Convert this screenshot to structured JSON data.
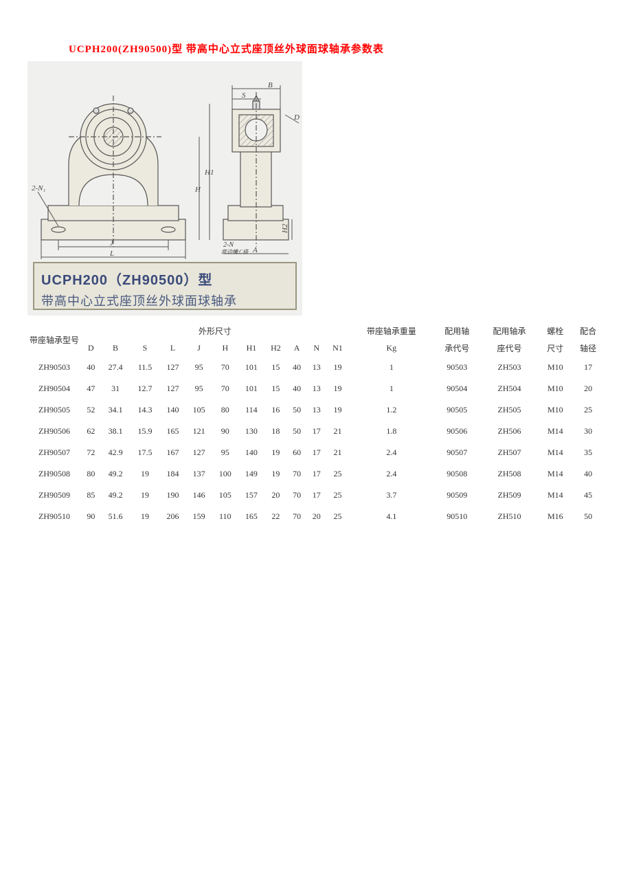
{
  "title": "UCPH200(ZH90500)型 带高中心立式座顶丝外球面球轴承参数表",
  "diagram": {
    "background": "#f0f0ee",
    "caption_line1": "UCPH200（ZH90500）型",
    "caption_line2": "带高中心立式座顶丝外球面球轴承",
    "caption_color1": "#3a4a7a",
    "caption_color2": "#4a5a80",
    "labels": {
      "B": "B",
      "S": "S",
      "D": "D",
      "H1": "H1",
      "H": "H",
      "J": "J",
      "L": "L",
      "A": "A",
      "H2": "H2",
      "N2": "2-N₁",
      "N": "2-N",
      "note": "底边槽.C级"
    }
  },
  "table": {
    "header_group": {
      "model": "带座轴承型号",
      "dims": "外形尺寸",
      "weight": "带座轴承重量",
      "bearing_code": "配用轴",
      "bearing_code2": "承代号",
      "seat_code": "配用轴承",
      "seat_code2": "座代号",
      "bolt": "螺栓",
      "bolt2": "尺寸",
      "shaft": "配合",
      "shaft2": "轴径"
    },
    "sub_headers": [
      "D",
      "B",
      "S",
      "L",
      "J",
      "H",
      "H1",
      "H2",
      "A",
      "N",
      "N1"
    ],
    "weight_unit": "Kg",
    "rows": [
      {
        "model": "ZH90503",
        "D": "40",
        "B": "27.4",
        "S": "11.5",
        "L": "127",
        "J": "95",
        "H": "70",
        "H1": "101",
        "H2": "15",
        "A": "40",
        "N": "13",
        "N1": "19",
        "Kg": "1",
        "bearing": "90503",
        "seat": "ZH503",
        "bolt": "M10",
        "shaft": "17"
      },
      {
        "model": "ZH90504",
        "D": "47",
        "B": "31",
        "S": "12.7",
        "L": "127",
        "J": "95",
        "H": "70",
        "H1": "101",
        "H2": "15",
        "A": "40",
        "N": "13",
        "N1": "19",
        "Kg": "1",
        "bearing": "90504",
        "seat": "ZH504",
        "bolt": "M10",
        "shaft": "20"
      },
      {
        "model": "ZH90505",
        "D": "52",
        "B": "34.1",
        "S": "14.3",
        "L": "140",
        "J": "105",
        "H": "80",
        "H1": "114",
        "H2": "16",
        "A": "50",
        "N": "13",
        "N1": "19",
        "Kg": "1.2",
        "bearing": "90505",
        "seat": "ZH505",
        "bolt": "M10",
        "shaft": "25"
      },
      {
        "model": "ZH90506",
        "D": "62",
        "B": "38.1",
        "S": "15.9",
        "L": "165",
        "J": "121",
        "H": "90",
        "H1": "130",
        "H2": "18",
        "A": "50",
        "N": "17",
        "N1": "21",
        "Kg": "1.8",
        "bearing": "90506",
        "seat": "ZH506",
        "bolt": "M14",
        "shaft": "30"
      },
      {
        "model": "ZH90507",
        "D": "72",
        "B": "42.9",
        "S": "17.5",
        "L": "167",
        "J": "127",
        "H": "95",
        "H1": "140",
        "H2": "19",
        "A": "60",
        "N": "17",
        "N1": "21",
        "Kg": "2.4",
        "bearing": "90507",
        "seat": "ZH507",
        "bolt": "M14",
        "shaft": "35"
      },
      {
        "model": "ZH90508",
        "D": "80",
        "B": "49.2",
        "S": "19",
        "L": "184",
        "J": "137",
        "H": "100",
        "H1": "149",
        "H2": "19",
        "A": "70",
        "N": "17",
        "N1": "25",
        "Kg": "2.4",
        "bearing": "90508",
        "seat": "ZH508",
        "bolt": "M14",
        "shaft": "40"
      },
      {
        "model": "ZH90509",
        "D": "85",
        "B": "49.2",
        "S": "19",
        "L": "190",
        "J": "146",
        "H": "105",
        "H1": "157",
        "H2": "20",
        "A": "70",
        "N": "17",
        "N1": "25",
        "Kg": "3.7",
        "bearing": "90509",
        "seat": "ZH509",
        "bolt": "M14",
        "shaft": "45"
      },
      {
        "model": "ZH90510",
        "D": "90",
        "B": "51.6",
        "S": "19",
        "L": "206",
        "J": "159",
        "H": "110",
        "H1": "165",
        "H2": "22",
        "A": "70",
        "N": "20",
        "N1": "25",
        "Kg": "4.1",
        "bearing": "90510",
        "seat": "ZH510",
        "bolt": "M16",
        "shaft": "50"
      }
    ]
  }
}
